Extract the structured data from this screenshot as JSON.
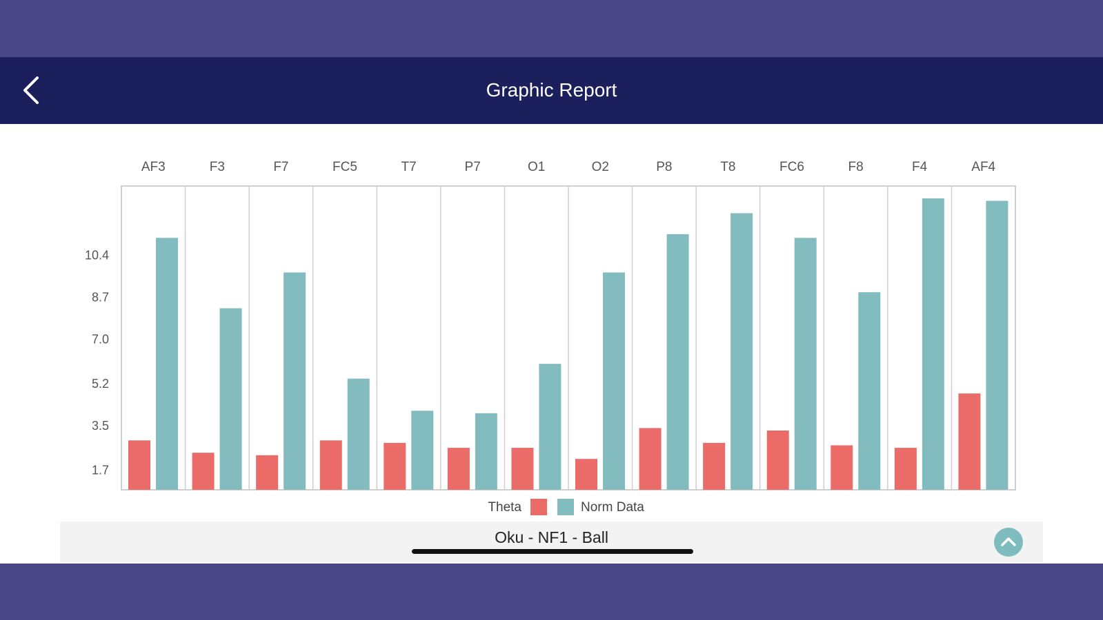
{
  "header": {
    "title": "Graphic Report",
    "back_icon": "chevron-left-icon"
  },
  "footer": {
    "title": "Oku - NF1 - Ball",
    "toggle_icon": "chevron-up-icon"
  },
  "colors": {
    "top_band": "#4a4787",
    "navbar": "#1b1f5c",
    "theta": "#ea6b67",
    "norm": "#82bcbe"
  },
  "chart_data": {
    "type": "bar",
    "categories": [
      "AF3",
      "F3",
      "F7",
      "FC5",
      "T7",
      "P7",
      "O1",
      "O2",
      "P8",
      "T8",
      "FC6",
      "F8",
      "F4",
      "AF4"
    ],
    "series": [
      {
        "name": "Theta",
        "values": [
          2.9,
          2.4,
          2.3,
          2.9,
          2.8,
          2.6,
          2.6,
          2.15,
          3.4,
          2.8,
          3.3,
          2.7,
          2.6,
          4.8
        ]
      },
      {
        "name": "Norm Data",
        "values": [
          11.1,
          8.25,
          9.7,
          5.4,
          4.1,
          4.0,
          6.0,
          9.7,
          11.25,
          12.1,
          11.1,
          8.9,
          12.7,
          12.6
        ]
      }
    ],
    "yticks": [
      "1.7",
      "3.5",
      "5.2",
      "7.0",
      "8.7",
      "10.4"
    ],
    "ytick_values": [
      1.7,
      3.5,
      5.2,
      7.0,
      8.7,
      10.4
    ],
    "ylim": [
      0.9,
      13.2
    ],
    "xaxis_position": "top",
    "legend": [
      "Theta",
      "Norm Data"
    ],
    "legend_position": "bottom-center",
    "grid": "vertical"
  }
}
